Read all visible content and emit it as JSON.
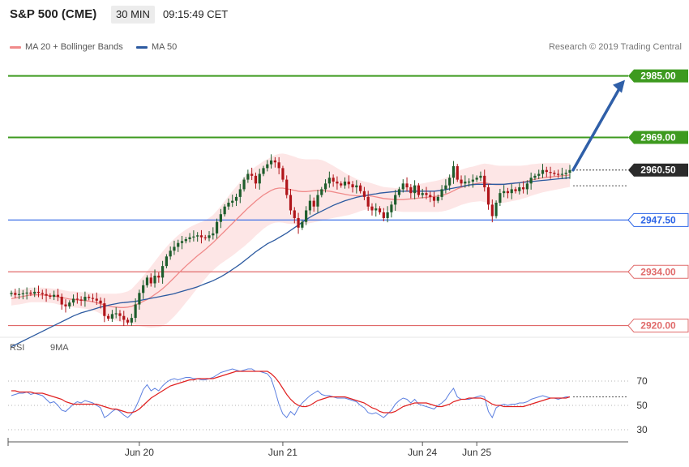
{
  "header": {
    "title": "S&P 500 (CME)",
    "timeframe": "30 MIN",
    "time": "09:15:49 CET"
  },
  "legend": {
    "ma20_label": "MA 20 + Bollinger Bands",
    "ma50_label": "MA 50",
    "copyright": "Research © 2019 Trading Central"
  },
  "rsi_legend": {
    "rsi_label": "RSI",
    "ma_label": "9MA"
  },
  "colors": {
    "candle_up": "#1e5d2c",
    "candle_down": "#b0151a",
    "ma20": "#f08a8a",
    "bollinger_fill": "#fde6e6",
    "ma50": "#2c5aa0",
    "resistance": "#3d9a1f",
    "pivot": "#2a63e6",
    "support": "#e06a6a",
    "price": "#2b2b2b",
    "rsi": "#5b7fe0",
    "rsi_ma": "#e02020",
    "arrow": "#2f5fa8"
  },
  "chart_data": [
    {
      "type": "candlestick",
      "title": "S&P 500 (CME)",
      "ylim": [
        2914,
        2990
      ],
      "x_tick_labels": [
        "Jun 20",
        "Jun 21",
        "Jun 24",
        "Jun 25"
      ],
      "x_tick_index": [
        33,
        70,
        106,
        120
      ],
      "y_tick_labels": [
        "2985.00",
        "2969.00",
        "2960.50",
        "2947.50",
        "2934.00",
        "2920.00"
      ],
      "levels": [
        {
          "kind": "resistance",
          "value": 2985.0,
          "label": "2985.00"
        },
        {
          "kind": "resistance",
          "value": 2969.0,
          "label": "2969.00"
        },
        {
          "kind": "price",
          "value": 2960.5,
          "label": "2960.50"
        },
        {
          "kind": "pivot",
          "value": 2947.5,
          "label": "2947.50"
        },
        {
          "kind": "support",
          "value": 2934.0,
          "label": "2934.00"
        },
        {
          "kind": "support",
          "value": 2920.0,
          "label": "2920.00"
        }
      ],
      "closes": [
        2928.5,
        2928.0,
        2928.2,
        2928.4,
        2928.6,
        2928.3,
        2928.8,
        2928.5,
        2928.2,
        2927.8,
        2927.5,
        2928.0,
        2927.5,
        2925.5,
        2925.0,
        2926.0,
        2927.0,
        2926.8,
        2926.5,
        2927.5,
        2927.2,
        2927.0,
        2926.5,
        2925.8,
        2922.5,
        2921.8,
        2923.0,
        2923.2,
        2922.5,
        2921.5,
        2920.8,
        2922.0,
        2925.5,
        2928.5,
        2930.5,
        2932.5,
        2931.0,
        2933.0,
        2932.5,
        2935.5,
        2938.0,
        2939.5,
        2940.5,
        2941.5,
        2942.0,
        2942.5,
        2943.0,
        2943.2,
        2943.5,
        2943.0,
        2942.8,
        2943.5,
        2944.0,
        2947.0,
        2949.0,
        2951.0,
        2952.0,
        2952.5,
        2953.5,
        2955.5,
        2958.0,
        2959.5,
        2959.0,
        2957.0,
        2959.5,
        2961.0,
        2962.0,
        2963.0,
        2962.5,
        2961.0,
        2958.0,
        2954.0,
        2950.0,
        2948.0,
        2945.5,
        2947.0,
        2950.0,
        2952.5,
        2951.0,
        2954.0,
        2955.5,
        2957.0,
        2958.5,
        2957.5,
        2957.0,
        2956.5,
        2957.5,
        2956.8,
        2956.0,
        2956.5,
        2955.0,
        2953.5,
        2951.0,
        2950.0,
        2950.5,
        2949.5,
        2948.0,
        2949.5,
        2951.5,
        2954.0,
        2955.5,
        2957.0,
        2956.0,
        2954.5,
        2956.5,
        2954.0,
        2954.5,
        2954.0,
        2953.5,
        2952.5,
        2953.5,
        2955.5,
        2956.5,
        2958.5,
        2961.5,
        2958.0,
        2957.0,
        2957.5,
        2957.5,
        2958.0,
        2958.5,
        2959.0,
        2956.0,
        2951.5,
        2948.5,
        2952.0,
        2954.5,
        2955.0,
        2954.5,
        2955.5,
        2955.0,
        2956.0,
        2955.5,
        2957.0,
        2958.5,
        2959.0,
        2959.5,
        2960.5,
        2960.0,
        2959.8,
        2959.5,
        2959.3,
        2959.5,
        2959.8,
        2960.5
      ],
      "ma20": [
        2927.0,
        2927.2,
        2927.4,
        2927.6,
        2927.8,
        2928.0,
        2928.0,
        2928.0,
        2928.0,
        2927.9,
        2927.8,
        2927.7,
        2927.5,
        2927.3,
        2927.1,
        2926.9,
        2926.8,
        2926.7,
        2926.6,
        2926.5,
        2926.4,
        2926.2,
        2926.0,
        2925.7,
        2925.4,
        2925.1,
        2924.9,
        2924.8,
        2924.7,
        2924.7,
        2924.8,
        2925.0,
        2925.4,
        2925.8,
        2926.3,
        2926.8,
        2927.4,
        2928.1,
        2928.8,
        2929.6,
        2930.5,
        2931.5,
        2932.5,
        2933.5,
        2934.5,
        2935.5,
        2936.4,
        2937.3,
        2938.2,
        2939.0,
        2939.8,
        2940.7,
        2941.6,
        2942.6,
        2943.6,
        2944.6,
        2945.6,
        2946.6,
        2947.6,
        2948.6,
        2949.6,
        2950.6,
        2951.5,
        2952.4,
        2953.2,
        2954.0,
        2954.6,
        2955.2,
        2955.6,
        2955.8,
        2955.8,
        2955.6,
        2955.4,
        2955.2,
        2955.0,
        2954.9,
        2954.9,
        2955.0,
        2955.1,
        2955.2,
        2955.2,
        2955.1,
        2955.0,
        2954.8,
        2954.6,
        2954.4,
        2954.2,
        2954.0,
        2953.9,
        2953.8,
        2953.8,
        2953.8,
        2953.8,
        2953.7,
        2953.5,
        2953.3,
        2953.1,
        2953.0,
        2952.9,
        2952.8,
        2952.8,
        2952.8,
        2952.9,
        2953.0,
        2953.1,
        2953.2,
        2953.3,
        2953.4,
        2953.5,
        2953.6,
        2953.7,
        2953.9,
        2954.2,
        2954.6,
        2955.1,
        2955.6,
        2956.0,
        2956.3,
        2956.6,
        2956.8,
        2957.0,
        2957.2,
        2957.2,
        2957.0,
        2956.8,
        2956.7,
        2956.7,
        2956.8,
        2956.9,
        2957.0,
        2957.1,
        2957.2,
        2957.4,
        2957.6,
        2957.9,
        2958.1,
        2958.3,
        2958.5,
        2958.6,
        2958.7,
        2958.8,
        2958.9,
        2959.0,
        2959.1,
        2959.2
      ],
      "ma50": [
        2914.5,
        2915.0,
        2915.5,
        2916.0,
        2916.5,
        2917.0,
        2917.5,
        2918.0,
        2918.5,
        2919.0,
        2919.5,
        2920.0,
        2920.5,
        2921.0,
        2921.5,
        2922.0,
        2922.5,
        2922.9,
        2923.3,
        2923.6,
        2923.9,
        2924.2,
        2924.5,
        2924.8,
        2925.0,
        2925.3,
        2925.5,
        2925.7,
        2925.9,
        2926.0,
        2926.1,
        2926.2,
        2926.3,
        2926.5,
        2926.7,
        2926.9,
        2927.1,
        2927.3,
        2927.5,
        2927.7,
        2927.9,
        2928.1,
        2928.3,
        2928.6,
        2928.9,
        2929.2,
        2929.5,
        2929.8,
        2930.1,
        2930.5,
        2930.9,
        2931.3,
        2931.7,
        2932.2,
        2932.7,
        2933.3,
        2933.9,
        2934.6,
        2935.3,
        2936.0,
        2936.8,
        2937.6,
        2938.4,
        2939.2,
        2939.9,
        2940.6,
        2941.3,
        2941.8,
        2942.3,
        2942.9,
        2943.5,
        2944.1,
        2944.8,
        2945.5,
        2946.2,
        2946.9,
        2947.6,
        2948.2,
        2948.8,
        2949.3,
        2949.8,
        2950.3,
        2950.8,
        2951.3,
        2951.7,
        2952.1,
        2952.5,
        2952.8,
        2953.1,
        2953.4,
        2953.6,
        2953.8,
        2954.0,
        2954.2,
        2954.3,
        2954.5,
        2954.6,
        2954.7,
        2954.8,
        2954.9,
        2955.0,
        2955.0,
        2955.0,
        2955.0,
        2955.0,
        2955.0,
        2955.0,
        2955.0,
        2955.0,
        2955.0,
        2955.1,
        2955.2,
        2955.4,
        2955.6,
        2955.8,
        2956.0,
        2956.2,
        2956.4,
        2956.6,
        2956.7,
        2956.8,
        2956.8,
        2956.8,
        2956.8,
        2956.8,
        2956.8,
        2956.8,
        2956.8,
        2956.9,
        2957.0,
        2957.1,
        2957.2,
        2957.3,
        2957.4,
        2957.5,
        2957.6,
        2957.7,
        2957.8,
        2957.9,
        2958.0,
        2958.1,
        2958.2,
        2958.3,
        2958.4,
        2958.5
      ],
      "bb_width": [
        1.8,
        1.8,
        1.9,
        1.9,
        1.9,
        1.9,
        1.9,
        1.9,
        1.9,
        1.9,
        1.9,
        1.9,
        2.0,
        2.0,
        2.0,
        2.0,
        2.1,
        2.1,
        2.1,
        2.1,
        2.2,
        2.3,
        2.4,
        2.6,
        2.9,
        3.2,
        3.4,
        3.5,
        3.7,
        3.9,
        4.1,
        4.5,
        5.2,
        5.9,
        6.6,
        7.3,
        8.0,
        8.6,
        9.2,
        9.7,
        10.0,
        10.1,
        10.1,
        10.0,
        9.8,
        9.5,
        9.2,
        8.8,
        8.4,
        8.0,
        7.6,
        7.3,
        7.2,
        7.3,
        7.5,
        7.8,
        8.1,
        8.4,
        8.6,
        8.8,
        9.0,
        9.1,
        9.1,
        9.0,
        8.9,
        8.8,
        8.7,
        8.7,
        8.8,
        8.9,
        9.0,
        9.0,
        8.9,
        8.8,
        8.6,
        8.5,
        8.4,
        8.3,
        8.2,
        8.1,
        7.9,
        7.6,
        7.2,
        6.8,
        6.4,
        6.0,
        5.6,
        5.2,
        4.8,
        4.4,
        4.0,
        3.7,
        3.5,
        3.3,
        3.2,
        3.1,
        3.0,
        3.0,
        3.0,
        3.0,
        3.1,
        3.2,
        3.3,
        3.4,
        3.5,
        3.6,
        3.7,
        3.8,
        3.9,
        4.0,
        4.1,
        4.2,
        4.3,
        4.4,
        4.5,
        4.6,
        4.6,
        4.6,
        4.6,
        4.6,
        4.7,
        4.8,
        5.0,
        5.1,
        5.1,
        5.0,
        4.9,
        4.8,
        4.7,
        4.6,
        4.5,
        4.4,
        4.3,
        4.2,
        4.1,
        4.0,
        3.9,
        3.8,
        3.7,
        3.6,
        3.5,
        3.4,
        3.3,
        3.2,
        3.1
      ]
    },
    {
      "type": "line",
      "ylim": [
        20,
        90
      ],
      "y_tick_labels": [
        "70",
        "50",
        "30"
      ],
      "series": [
        {
          "name": "RSI",
          "values": [
            58,
            59,
            60,
            60,
            61,
            59,
            60,
            59,
            58,
            55,
            52,
            53,
            50,
            46,
            45,
            48,
            51,
            53,
            52,
            54,
            53,
            52,
            50,
            48,
            40,
            42,
            45,
            47,
            45,
            42,
            40,
            43,
            48,
            55,
            63,
            67,
            62,
            64,
            62,
            66,
            69,
            71,
            72,
            71,
            72,
            73,
            73,
            72,
            72,
            71,
            71,
            72,
            73,
            75,
            77,
            78,
            79,
            80,
            79,
            78,
            79,
            80,
            80,
            78,
            78,
            77,
            76,
            72,
            62,
            51,
            43,
            40,
            45,
            42,
            48,
            52,
            55,
            58,
            60,
            62,
            59,
            58,
            58,
            57,
            56,
            56,
            56,
            55,
            54,
            53,
            50,
            48,
            44,
            43,
            44,
            42,
            40,
            43,
            46,
            51,
            54,
            56,
            55,
            52,
            55,
            51,
            50,
            49,
            48,
            47,
            50,
            52,
            55,
            60,
            64,
            57,
            55,
            55,
            55,
            56,
            57,
            58,
            57,
            45,
            40,
            48,
            50,
            51,
            50,
            51,
            51,
            52,
            52,
            53,
            55,
            56,
            57,
            58,
            57,
            56,
            56,
            55,
            56,
            57,
            57
          ]
        },
        {
          "name": "9MA",
          "values": [
            62,
            62,
            61,
            61,
            61,
            61,
            60,
            60,
            60,
            59,
            58,
            57,
            56,
            55,
            53,
            52,
            51,
            51,
            51,
            51,
            51,
            51,
            51,
            50,
            49,
            48,
            47,
            47,
            46,
            45,
            44,
            44,
            45,
            47,
            50,
            53,
            56,
            58,
            60,
            62,
            64,
            66,
            67,
            68,
            69,
            70,
            71,
            71,
            72,
            72,
            72,
            72,
            72,
            73,
            74,
            75,
            76,
            77,
            78,
            78,
            78,
            78,
            78,
            78,
            78,
            78,
            78,
            76,
            73,
            69,
            64,
            59,
            55,
            52,
            50,
            49,
            49,
            50,
            52,
            54,
            55,
            56,
            57,
            57,
            57,
            57,
            57,
            56,
            55,
            54,
            53,
            52,
            50,
            48,
            47,
            45,
            44,
            44,
            44,
            45,
            47,
            49,
            50,
            51,
            52,
            52,
            52,
            52,
            51,
            50,
            49,
            49,
            50,
            51,
            53,
            54,
            55,
            55,
            56,
            56,
            56,
            56,
            55,
            53,
            51,
            50,
            50,
            49,
            49,
            49,
            49,
            49,
            49,
            50,
            51,
            52,
            53,
            54,
            55,
            56,
            56,
            56,
            56,
            56,
            57
          ]
        }
      ]
    }
  ]
}
